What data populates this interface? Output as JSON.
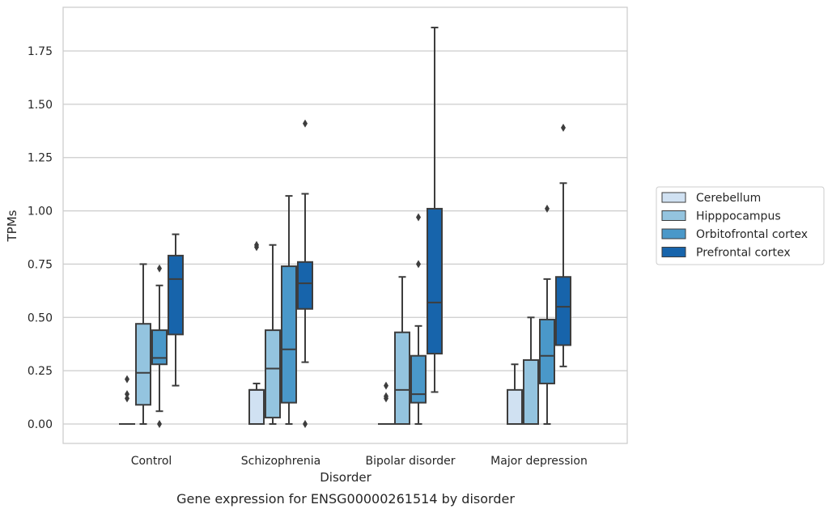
{
  "chart_data": {
    "type": "box",
    "title": "",
    "caption": "Gene expression for ENSG00000261514 by disorder",
    "xlabel": "Disorder",
    "ylabel": "TPMs",
    "ylim": [
      -0.09,
      1.95
    ],
    "yticks": [
      "0.00",
      "0.25",
      "0.50",
      "0.75",
      "1.00",
      "1.25",
      "1.50",
      "1.75"
    ],
    "ytick_values": [
      0,
      0.25,
      0.5,
      0.75,
      1.0,
      1.25,
      1.5,
      1.75
    ],
    "categories": [
      "Control",
      "Schizophrenia",
      "Bipolar disorder",
      "Major depression"
    ],
    "grid": "horizontal",
    "legend_position": "right",
    "series": [
      {
        "name": "Cerebellum",
        "color": "#d0e1f2",
        "boxes": [
          {
            "whislo": 0,
            "q1": 0,
            "med": 0,
            "q3": 0,
            "whishi": 0,
            "fliers": [
              0.12,
              0.14,
              0.21
            ]
          },
          {
            "whislo": 0,
            "q1": 0,
            "med": 0.16,
            "q3": 0.16,
            "whishi": 0.19,
            "fliers": [
              0.83,
              0.84
            ]
          },
          {
            "whislo": 0,
            "q1": 0,
            "med": 0,
            "q3": 0,
            "whishi": 0,
            "fliers": [
              0.12,
              0.13,
              0.18
            ]
          },
          {
            "whislo": 0,
            "q1": 0,
            "med": 0,
            "q3": 0.16,
            "whishi": 0.28,
            "fliers": []
          }
        ]
      },
      {
        "name": "Hipppocampus",
        "color": "#94c4df",
        "boxes": [
          {
            "whislo": 0,
            "q1": 0.09,
            "med": 0.24,
            "q3": 0.47,
            "whishi": 0.75,
            "fliers": []
          },
          {
            "whislo": 0,
            "q1": 0.03,
            "med": 0.26,
            "q3": 0.44,
            "whishi": 0.84,
            "fliers": []
          },
          {
            "whislo": 0,
            "q1": 0,
            "med": 0.16,
            "q3": 0.43,
            "whishi": 0.69,
            "fliers": []
          },
          {
            "whislo": 0,
            "q1": 0,
            "med": 0,
            "q3": 0.3,
            "whishi": 0.5,
            "fliers": []
          }
        ]
      },
      {
        "name": "Orbitofrontal cortex",
        "color": "#4a98c9",
        "boxes": [
          {
            "whislo": 0.06,
            "q1": 0.28,
            "med": 0.31,
            "q3": 0.44,
            "whishi": 0.65,
            "fliers": [
              0.0,
              0.73
            ]
          },
          {
            "whislo": 0,
            "q1": 0.1,
            "med": 0.35,
            "q3": 0.74,
            "whishi": 1.07,
            "fliers": []
          },
          {
            "whislo": 0,
            "q1": 0.1,
            "med": 0.14,
            "q3": 0.32,
            "whishi": 0.46,
            "fliers": [
              0.75,
              0.97
            ]
          },
          {
            "whislo": 0,
            "q1": 0.19,
            "med": 0.32,
            "q3": 0.49,
            "whishi": 0.68,
            "fliers": [
              1.01
            ]
          }
        ]
      },
      {
        "name": "Prefrontal cortex",
        "color": "#1764ab",
        "boxes": [
          {
            "whislo": 0.18,
            "q1": 0.42,
            "med": 0.68,
            "q3": 0.79,
            "whishi": 0.89,
            "fliers": []
          },
          {
            "whislo": 0.29,
            "q1": 0.54,
            "med": 0.66,
            "q3": 0.76,
            "whishi": 1.08,
            "fliers": [
              0.0,
              1.41
            ]
          },
          {
            "whislo": 0.15,
            "q1": 0.33,
            "med": 0.57,
            "q3": 1.01,
            "whishi": 1.86,
            "fliers": []
          },
          {
            "whislo": 0.27,
            "q1": 0.37,
            "med": 0.55,
            "q3": 0.69,
            "whishi": 1.13,
            "fliers": [
              1.39
            ]
          }
        ]
      }
    ]
  }
}
